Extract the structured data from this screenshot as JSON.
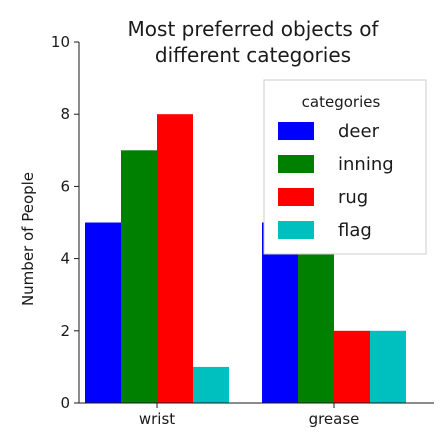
{
  "chart_data": {
    "type": "bar",
    "title_lines": [
      "Most preferred objects of",
      "different categories"
    ],
    "xlabel": "",
    "ylabel": "Number of People",
    "categories": [
      "wrist",
      "grease"
    ],
    "series": [
      {
        "name": "deer",
        "color": "#0000ff",
        "values": [
          5,
          5
        ]
      },
      {
        "name": "inning",
        "color": "#008000",
        "values": [
          7,
          5
        ]
      },
      {
        "name": "rug",
        "color": "#ff0000",
        "values": [
          8,
          2
        ]
      },
      {
        "name": "flag",
        "color": "#00bfbf",
        "values": [
          1,
          2
        ]
      }
    ],
    "ylim": [
      0,
      10
    ],
    "yticks": [
      "0",
      "2",
      "4",
      "6",
      "8",
      "10"
    ],
    "legend": {
      "title": "categories",
      "placement": "top-right"
    },
    "grid": false
  }
}
